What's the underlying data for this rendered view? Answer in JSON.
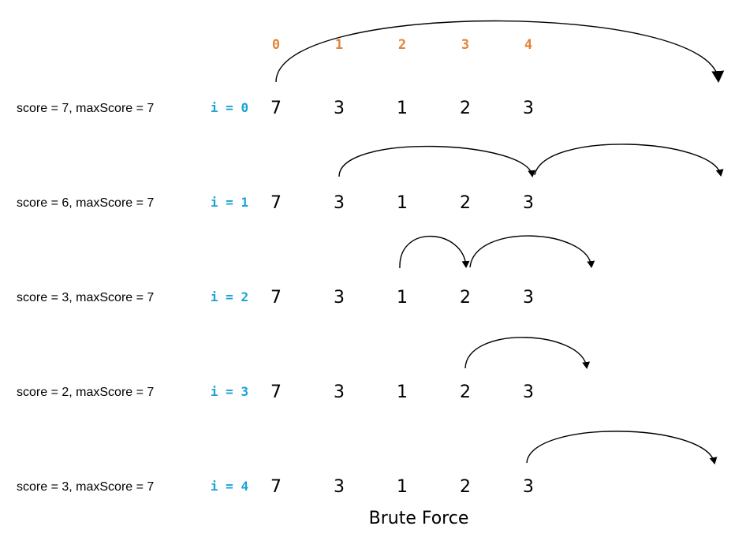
{
  "indices": [
    "0",
    "1",
    "2",
    "3",
    "4"
  ],
  "rows": [
    {
      "score_text": "score = 7, maxScore = 7",
      "i_label": "i = 0",
      "values": [
        "7",
        "3",
        "1",
        "2",
        "3"
      ]
    },
    {
      "score_text": "score = 6, maxScore = 7",
      "i_label": "i = 1",
      "values": [
        "7",
        "3",
        "1",
        "2",
        "3"
      ]
    },
    {
      "score_text": "score = 3, maxScore = 7",
      "i_label": "i = 2",
      "values": [
        "7",
        "3",
        "1",
        "2",
        "3"
      ]
    },
    {
      "score_text": "score = 2, maxScore = 7",
      "i_label": "i = 3",
      "values": [
        "7",
        "3",
        "1",
        "2",
        "3"
      ]
    },
    {
      "score_text": "score = 3, maxScore = 7",
      "i_label": "i = 4",
      "values": [
        "7",
        "3",
        "1",
        "2",
        "3"
      ]
    }
  ],
  "caption": "Brute Force",
  "colors": {
    "index": "#e0843a",
    "i_label": "#1ba3d6",
    "text": "#000000"
  }
}
